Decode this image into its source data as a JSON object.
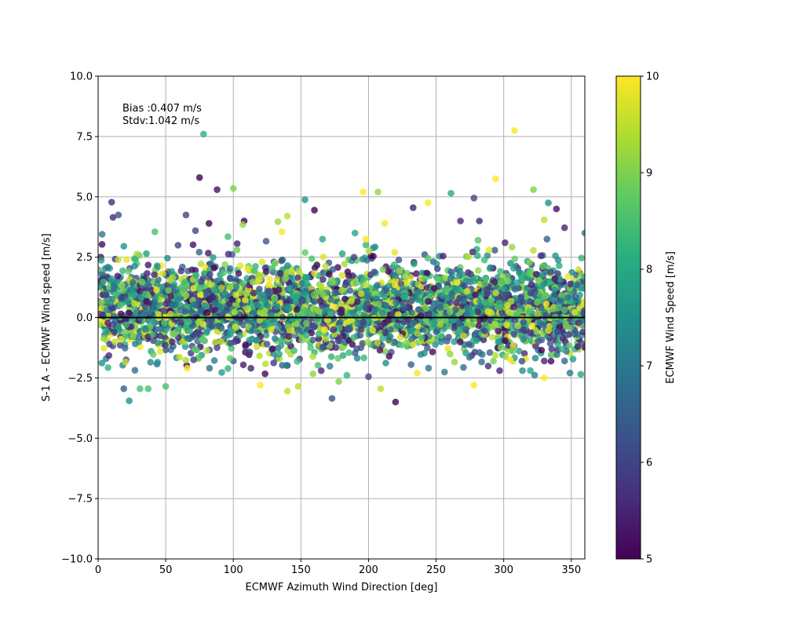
{
  "chart_data": {
    "type": "scatter",
    "xlabel": "ECMWF Azimuth Wind Direction [deg]",
    "ylabel": "S-1 A - ECMWF Wind speed [m/s]",
    "xlim": [
      0,
      360
    ],
    "ylim": [
      -10,
      10
    ],
    "x_ticks": [
      "0",
      "50",
      "100",
      "150",
      "200",
      "250",
      "300",
      "350"
    ],
    "y_ticks": [
      "−10.0",
      "−7.5",
      "−5.0",
      "−2.5",
      "0.0",
      "2.5",
      "5.0",
      "7.5",
      "10.0"
    ],
    "grid": true,
    "reference_line_y": 0,
    "annotations": [
      "Bias :0.407 m/s",
      "Stdv:1.042 m/s"
    ],
    "colorbar": {
      "label": "ECMWF Wind Speed [m/s]",
      "range": [
        5,
        10
      ],
      "ticks": [
        "5",
        "6",
        "7",
        "8",
        "9",
        "10"
      ],
      "colormap": "viridis"
    },
    "points": [
      [
        78,
        7.6,
        8.2
      ],
      [
        308,
        7.75,
        10
      ],
      [
        75,
        5.8,
        5
      ],
      [
        88,
        5.3,
        5.2
      ],
      [
        100,
        5.35,
        9
      ],
      [
        196,
        5.2,
        10
      ],
      [
        207,
        5.2,
        9.2
      ],
      [
        261,
        5.15,
        8
      ],
      [
        294,
        5.75,
        10
      ],
      [
        322,
        5.3,
        9
      ],
      [
        153,
        4.88,
        7.5
      ],
      [
        278,
        4.95,
        6
      ],
      [
        339,
        4.5,
        5.2
      ],
      [
        333,
        4.75,
        7.5
      ],
      [
        244,
        4.75,
        10
      ],
      [
        233,
        4.55,
        5.5
      ],
      [
        10,
        4.78,
        5.6
      ],
      [
        11,
        4.15,
        5.6
      ],
      [
        15,
        4.25,
        6.2
      ],
      [
        65,
        4.25,
        6
      ],
      [
        160,
        4.45,
        5
      ],
      [
        108,
        4.0,
        5
      ],
      [
        140,
        4.2,
        9.5
      ],
      [
        133,
        3.97,
        9.2
      ],
      [
        82,
        3.9,
        5
      ],
      [
        268,
        4.0,
        5.5
      ],
      [
        282,
        4.0,
        5.5
      ],
      [
        345,
        3.72,
        5.5
      ],
      [
        212,
        3.9,
        10
      ],
      [
        330,
        4.05,
        9.5
      ],
      [
        107,
        3.85,
        9.2
      ],
      [
        198,
        3.25,
        10
      ],
      [
        3,
        3.45,
        7
      ],
      [
        72,
        3.6,
        6
      ],
      [
        190,
        3.5,
        8
      ],
      [
        281,
        3.2,
        8.6
      ],
      [
        301,
        3.1,
        5.5
      ],
      [
        332,
        3.25,
        6.5
      ],
      [
        136,
        3.55,
        10
      ],
      [
        96,
        3.35,
        8.5
      ],
      [
        166,
        3.25,
        8
      ],
      [
        42,
        3.55,
        8.5
      ],
      [
        360,
        3.5,
        7
      ],
      [
        23,
        -3.45,
        7.5
      ],
      [
        19,
        -2.95,
        6.5
      ],
      [
        50,
        -2.85,
        8.5
      ],
      [
        31,
        -2.95,
        8.5
      ],
      [
        37,
        -2.95,
        8.5
      ],
      [
        120,
        -2.8,
        10
      ],
      [
        140,
        -3.05,
        9.5
      ],
      [
        148,
        -2.85,
        9.5
      ],
      [
        173,
        -3.35,
        6.2
      ],
      [
        220,
        -3.5,
        5
      ],
      [
        209,
        -2.95,
        9.5
      ],
      [
        278,
        -2.8,
        10
      ],
      [
        330,
        -2.5,
        10
      ],
      [
        178,
        -2.65,
        9
      ],
      [
        200,
        -2.45,
        6
      ],
      [
        357,
        -2.35,
        8
      ],
      [
        349,
        -2.3,
        7
      ],
      [
        236,
        -2.3,
        10
      ],
      [
        66,
        -2.1,
        10
      ],
      [
        113,
        -2.1,
        5.5
      ],
      [
        165,
        -2.2,
        5.5
      ],
      [
        297,
        -2.2,
        5.5
      ],
      [
        305,
        -1.75,
        10
      ],
      [
        330,
        -1.8,
        5.5
      ]
    ]
  }
}
